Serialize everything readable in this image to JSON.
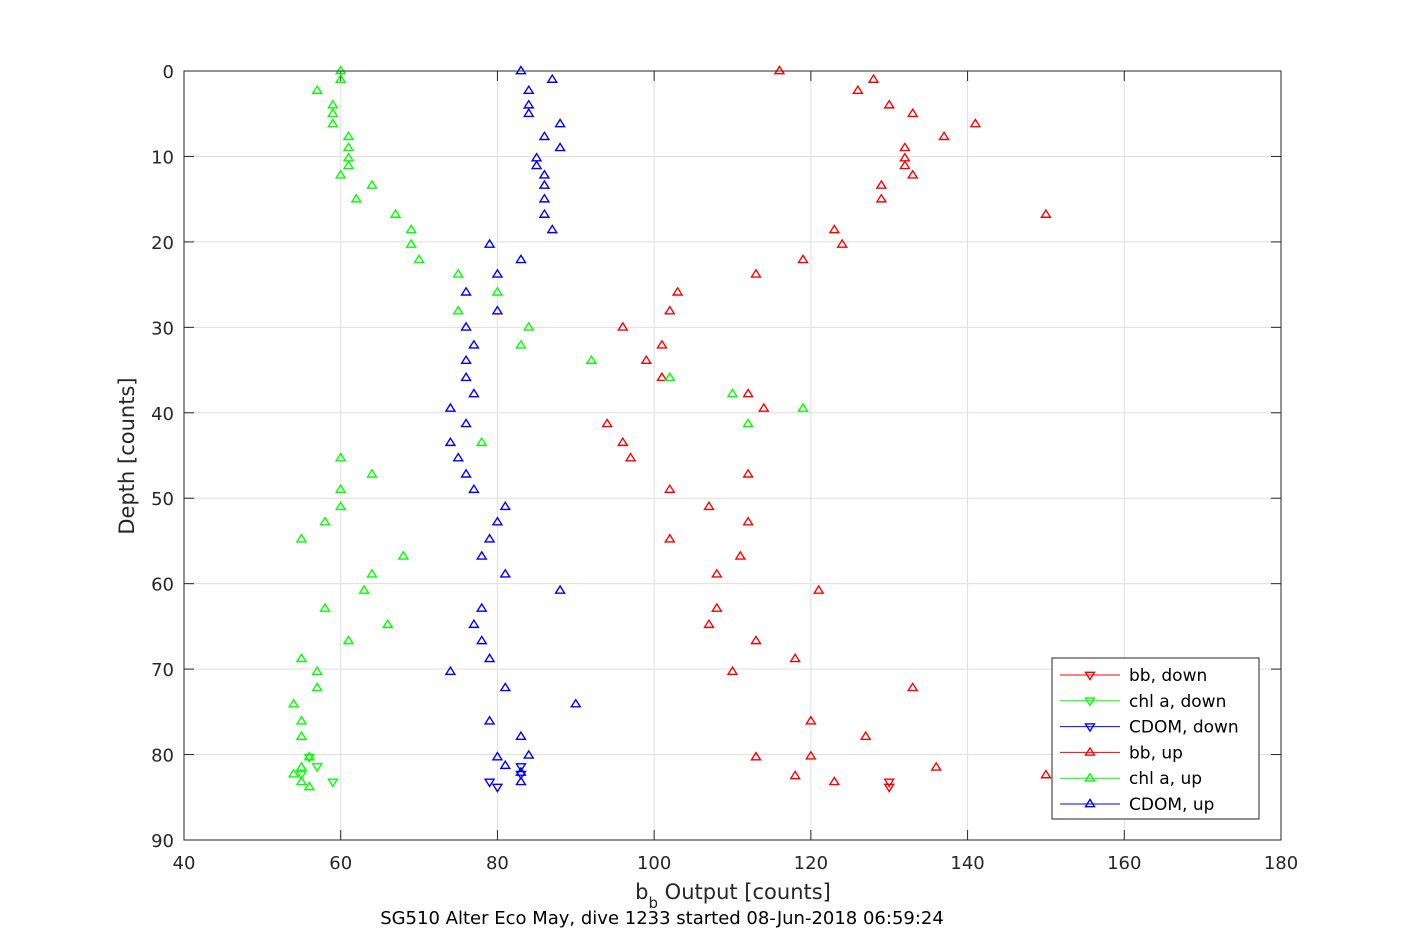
{
  "chart_data": {
    "type": "scatter",
    "xlabel_main": "b",
    "xlabel_sub": "b",
    "xlabel_rest": " Output [counts]",
    "ylabel": "Depth [counts]",
    "caption": "SG510 Alter Eco May, dive 1233 started 08-Jun-2018 06:59:24",
    "xlim": [
      40,
      180
    ],
    "ylim": [
      0,
      90
    ],
    "y_reversed": true,
    "grid": true,
    "legend_position": "bottom-right",
    "xticks": [
      "40",
      "60",
      "80",
      "100",
      "120",
      "140",
      "160",
      "180"
    ],
    "yticks": [
      "0",
      "10",
      "20",
      "30",
      "40",
      "50",
      "60",
      "70",
      "80",
      "90"
    ],
    "legend": [
      {
        "label": "bb, down",
        "color": "#ff0000",
        "marker": "triangle-down"
      },
      {
        "label": "chl a, down",
        "color": "#00ff00",
        "marker": "triangle-down"
      },
      {
        "label": "CDOM, down",
        "color": "#0000ff",
        "marker": "triangle-down"
      },
      {
        "label": "bb, up",
        "color": "#ff0000",
        "marker": "triangle-up"
      },
      {
        "label": "chl a, up",
        "color": "#00ff00",
        "marker": "triangle-up"
      },
      {
        "label": "CDOM, up",
        "color": "#0000ff",
        "marker": "triangle-up"
      }
    ],
    "series": [
      {
        "name": "bb, down",
        "color": "#ff0000",
        "marker": "triangle-down",
        "points": [
          [
            130,
            83.2
          ],
          [
            130,
            83.8
          ]
        ]
      },
      {
        "name": "chl a, down",
        "color": "#00ff00",
        "marker": "triangle-down",
        "points": [
          [
            56,
            80.3
          ],
          [
            57,
            81.4
          ],
          [
            55,
            82.3
          ],
          [
            59,
            83.2
          ]
        ]
      },
      {
        "name": "CDOM, down",
        "color": "#0000ff",
        "marker": "triangle-down",
        "points": [
          [
            83,
            81.4
          ],
          [
            83,
            82.3
          ],
          [
            79,
            83.2
          ],
          [
            80,
            83.8
          ]
        ]
      },
      {
        "name": "bb, up",
        "color": "#ff0000",
        "marker": "triangle-up",
        "points": [
          [
            116,
            0
          ],
          [
            128,
            1
          ],
          [
            126,
            2.3
          ],
          [
            130,
            4
          ],
          [
            133,
            5
          ],
          [
            141,
            6.2
          ],
          [
            137,
            7.7
          ],
          [
            132,
            9
          ],
          [
            132,
            10.2
          ],
          [
            132,
            11.1
          ],
          [
            133,
            12.2
          ],
          [
            129,
            13.4
          ],
          [
            129,
            15
          ],
          [
            150,
            16.8
          ],
          [
            123,
            18.6
          ],
          [
            124,
            20.3
          ],
          [
            119,
            22.1
          ],
          [
            113,
            23.8
          ],
          [
            103,
            25.9
          ],
          [
            102,
            28.1
          ],
          [
            96,
            30
          ],
          [
            101,
            32.1
          ],
          [
            99,
            33.9
          ],
          [
            101,
            35.9
          ],
          [
            112,
            37.8
          ],
          [
            114,
            39.5
          ],
          [
            94,
            41.3
          ],
          [
            96,
            43.5
          ],
          [
            97,
            45.3
          ],
          [
            112,
            47.2
          ],
          [
            102,
            49
          ],
          [
            107,
            51
          ],
          [
            112,
            52.8
          ],
          [
            102,
            54.8
          ],
          [
            111,
            56.8
          ],
          [
            108,
            58.9
          ],
          [
            121,
            60.8
          ],
          [
            108,
            62.9
          ],
          [
            107,
            64.8
          ],
          [
            113,
            66.7
          ],
          [
            118,
            68.8
          ],
          [
            110,
            70.3
          ],
          [
            133,
            72.2
          ],
          [
            120,
            76.1
          ],
          [
            127,
            77.9
          ],
          [
            113,
            80.3
          ],
          [
            120,
            80.2
          ],
          [
            136,
            81.5
          ],
          [
            118,
            82.5
          ],
          [
            123,
            83.2
          ],
          [
            150,
            82.4
          ]
        ]
      },
      {
        "name": "chl a, up",
        "color": "#00ff00",
        "marker": "triangle-up",
        "points": [
          [
            60,
            0
          ],
          [
            60,
            1
          ],
          [
            57,
            2.3
          ],
          [
            59,
            4
          ],
          [
            59,
            5
          ],
          [
            59,
            6.2
          ],
          [
            61,
            7.7
          ],
          [
            61,
            9
          ],
          [
            61,
            10.2
          ],
          [
            61,
            11.1
          ],
          [
            60,
            12.2
          ],
          [
            64,
            13.4
          ],
          [
            62,
            15
          ],
          [
            67,
            16.8
          ],
          [
            69,
            18.6
          ],
          [
            69,
            20.3
          ],
          [
            70,
            22.1
          ],
          [
            75,
            23.8
          ],
          [
            80,
            25.9
          ],
          [
            75,
            28.1
          ],
          [
            84,
            30
          ],
          [
            83,
            32.1
          ],
          [
            92,
            33.9
          ],
          [
            102,
            35.9
          ],
          [
            110,
            37.8
          ],
          [
            119,
            39.5
          ],
          [
            112,
            41.3
          ],
          [
            78,
            43.5
          ],
          [
            60,
            45.3
          ],
          [
            64,
            47.2
          ],
          [
            60,
            49
          ],
          [
            60,
            51
          ],
          [
            58,
            52.8
          ],
          [
            55,
            54.8
          ],
          [
            68,
            56.8
          ],
          [
            64,
            58.9
          ],
          [
            63,
            60.8
          ],
          [
            58,
            62.9
          ],
          [
            66,
            64.8
          ],
          [
            61,
            66.7
          ],
          [
            55,
            68.8
          ],
          [
            57,
            70.3
          ],
          [
            57,
            72.2
          ],
          [
            54,
            74.1
          ],
          [
            55,
            76.1
          ],
          [
            55,
            77.9
          ],
          [
            56,
            80.3
          ],
          [
            55,
            81.5
          ],
          [
            54,
            82.3
          ],
          [
            55,
            83.2
          ],
          [
            56,
            83.8
          ]
        ]
      },
      {
        "name": "CDOM, up",
        "color": "#0000ff",
        "marker": "triangle-up",
        "points": [
          [
            83,
            0
          ],
          [
            87,
            1
          ],
          [
            84,
            2.3
          ],
          [
            84,
            4
          ],
          [
            84,
            5
          ],
          [
            88,
            6.2
          ],
          [
            86,
            7.7
          ],
          [
            88,
            9
          ],
          [
            85,
            10.2
          ],
          [
            85,
            11.1
          ],
          [
            86,
            12.2
          ],
          [
            86,
            13.4
          ],
          [
            86,
            15
          ],
          [
            86,
            16.8
          ],
          [
            87,
            18.6
          ],
          [
            79,
            20.3
          ],
          [
            83,
            22.1
          ],
          [
            80,
            23.8
          ],
          [
            76,
            25.9
          ],
          [
            80,
            28.1
          ],
          [
            76,
            30
          ],
          [
            77,
            32.1
          ],
          [
            76,
            33.9
          ],
          [
            76,
            35.9
          ],
          [
            77,
            37.8
          ],
          [
            74,
            39.5
          ],
          [
            76,
            41.3
          ],
          [
            74,
            43.5
          ],
          [
            75,
            45.3
          ],
          [
            76,
            47.2
          ],
          [
            77,
            49
          ],
          [
            81,
            51
          ],
          [
            80,
            52.8
          ],
          [
            79,
            54.8
          ],
          [
            78,
            56.8
          ],
          [
            81,
            58.9
          ],
          [
            88,
            60.8
          ],
          [
            78,
            62.9
          ],
          [
            77,
            64.8
          ],
          [
            78,
            66.7
          ],
          [
            79,
            68.8
          ],
          [
            74,
            70.3
          ],
          [
            81,
            72.2
          ],
          [
            90,
            74.1
          ],
          [
            79,
            76.1
          ],
          [
            83,
            77.9
          ],
          [
            80,
            80.3
          ],
          [
            84,
            80.1
          ],
          [
            81,
            81.3
          ],
          [
            83,
            82.1
          ],
          [
            83,
            83.2
          ]
        ]
      }
    ]
  }
}
